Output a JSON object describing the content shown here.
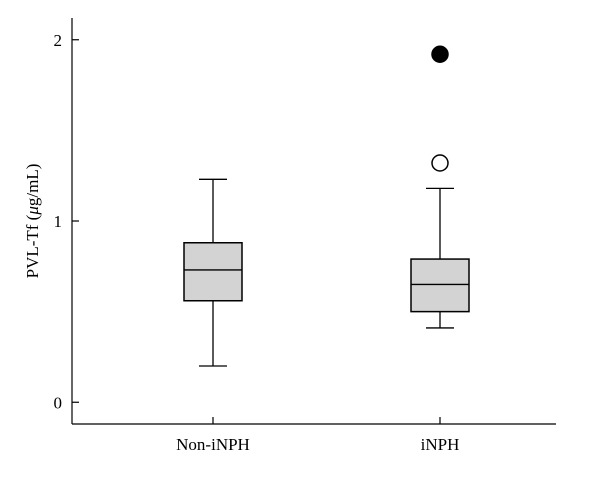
{
  "chart_data": {
    "type": "box",
    "ylabel": "PVL-Tf (μg/mL)",
    "ylabel_parts": [
      "PVL-Tf (",
      "μ",
      "g/mL)"
    ],
    "ylim": [
      -0.12,
      2.12
    ],
    "yticks": [
      0,
      1,
      2
    ],
    "categories": [
      "Non-iNPH",
      "iNPH"
    ],
    "box_fill": "#d3d3d3",
    "boxes": [
      {
        "category": "Non-iNPH",
        "whisker_low": 0.2,
        "q1": 0.56,
        "median": 0.73,
        "q3": 0.88,
        "whisker_high": 1.23,
        "outliers": []
      },
      {
        "category": "iNPH",
        "whisker_low": 0.41,
        "q1": 0.5,
        "median": 0.65,
        "q3": 0.79,
        "whisker_high": 1.18,
        "outliers": [
          {
            "value": 1.32,
            "style": "open"
          },
          {
            "value": 1.92,
            "style": "filled"
          }
        ]
      }
    ]
  }
}
